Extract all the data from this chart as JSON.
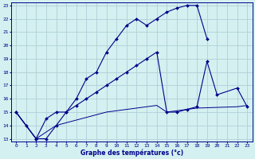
{
  "title": "Graphe des températures (°c)",
  "bg_color": "#d4f0f0",
  "line_color": "#00008b",
  "grid_color": "#b0d0d8",
  "xlim": [
    -0.5,
    23.5
  ],
  "ylim": [
    12.8,
    23.2
  ],
  "xticks": [
    0,
    1,
    2,
    3,
    4,
    5,
    6,
    7,
    8,
    9,
    10,
    11,
    12,
    13,
    14,
    15,
    16,
    17,
    18,
    19,
    20,
    21,
    22,
    23
  ],
  "yticks": [
    13,
    14,
    15,
    16,
    17,
    18,
    19,
    20,
    21,
    22,
    23
  ],
  "line1_x": [
    0,
    1,
    2,
    3,
    4,
    5,
    6,
    7,
    8,
    9,
    10,
    11,
    12,
    13,
    14,
    15,
    16,
    17,
    18,
    19
  ],
  "line1_y": [
    15.0,
    14.0,
    13.0,
    13.0,
    14.0,
    15.0,
    16.0,
    17.5,
    18.0,
    19.5,
    20.5,
    21.5,
    22.0,
    21.5,
    22.0,
    22.5,
    22.8,
    23.0,
    23.0,
    20.5
  ],
  "line2_x": [
    0,
    2,
    3,
    4,
    5,
    6,
    7,
    8,
    9,
    10,
    11,
    12,
    13,
    14,
    15,
    16,
    17,
    18,
    19,
    20,
    22,
    23
  ],
  "line2_y": [
    15.0,
    13.0,
    14.5,
    15.0,
    15.0,
    15.5,
    16.0,
    16.5,
    17.0,
    17.5,
    18.0,
    18.5,
    19.0,
    19.5,
    15.0,
    15.0,
    15.2,
    15.4,
    18.8,
    16.3,
    16.8,
    15.4
  ],
  "line3_x": [
    0,
    2,
    3,
    4,
    5,
    6,
    7,
    8,
    9,
    10,
    11,
    12,
    13,
    14,
    15,
    16,
    17,
    18,
    22,
    23
  ],
  "line3_y": [
    15.0,
    13.0,
    13.5,
    14.0,
    14.2,
    14.4,
    14.6,
    14.8,
    15.0,
    15.1,
    15.2,
    15.3,
    15.4,
    15.5,
    15.0,
    15.1,
    15.2,
    15.3,
    15.4,
    15.5
  ]
}
